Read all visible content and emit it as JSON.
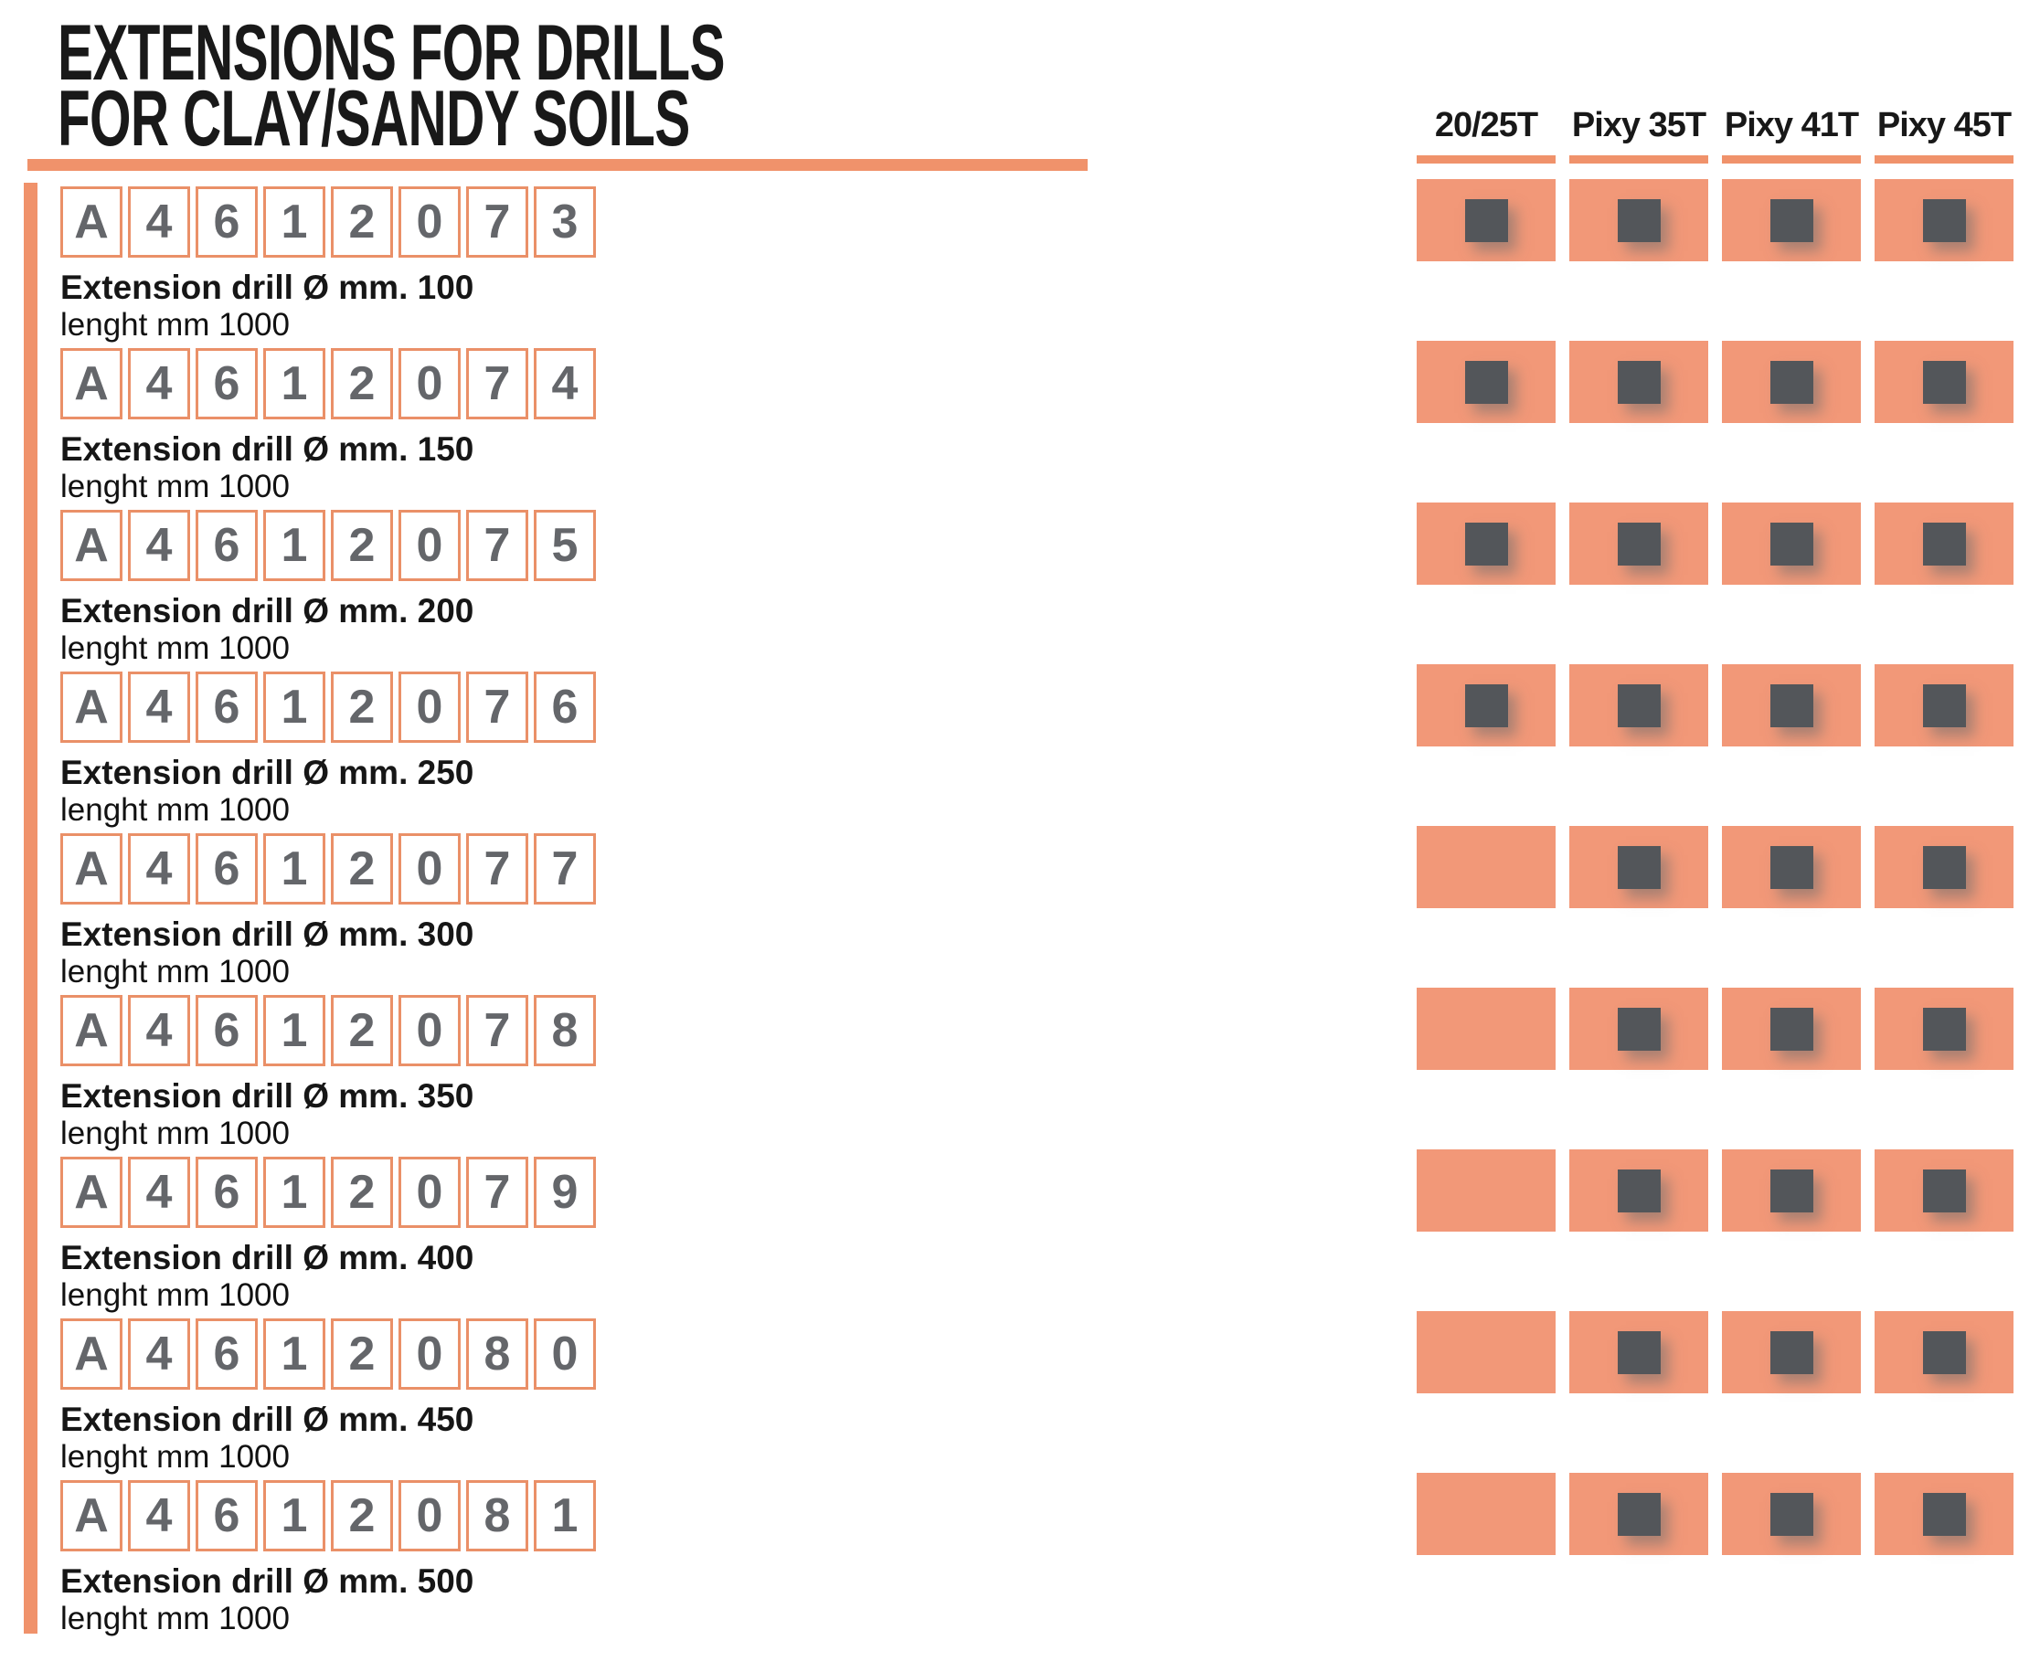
{
  "page": {
    "title_line1": "EXTENSIONS FOR DRILLS",
    "title_line2": "FOR CLAY/SANDY SOILS"
  },
  "columns": [
    {
      "label": "20/25T"
    },
    {
      "label": "Pixy 35T"
    },
    {
      "label": "Pixy 41T"
    },
    {
      "label": "Pixy 45T"
    }
  ],
  "rows": [
    {
      "code": [
        "A",
        "4",
        "6",
        "1",
        "2",
        "0",
        "7",
        "3"
      ],
      "description": "Extension drill Ø mm. 100",
      "length_note": "lenght mm 1000",
      "compatibility": [
        true,
        true,
        true,
        true
      ]
    },
    {
      "code": [
        "A",
        "4",
        "6",
        "1",
        "2",
        "0",
        "7",
        "4"
      ],
      "description": "Extension drill Ø mm. 150",
      "length_note": "lenght mm 1000",
      "compatibility": [
        true,
        true,
        true,
        true
      ]
    },
    {
      "code": [
        "A",
        "4",
        "6",
        "1",
        "2",
        "0",
        "7",
        "5"
      ],
      "description": "Extension drill Ø mm. 200",
      "length_note": "lenght mm 1000",
      "compatibility": [
        true,
        true,
        true,
        true
      ]
    },
    {
      "code": [
        "A",
        "4",
        "6",
        "1",
        "2",
        "0",
        "7",
        "6"
      ],
      "description": "Extension drill Ø mm. 250",
      "length_note": "lenght mm 1000",
      "compatibility": [
        true,
        true,
        true,
        true
      ]
    },
    {
      "code": [
        "A",
        "4",
        "6",
        "1",
        "2",
        "0",
        "7",
        "7"
      ],
      "description": "Extension drill Ø mm. 300",
      "length_note": "lenght mm 1000",
      "compatibility": [
        false,
        true,
        true,
        true
      ]
    },
    {
      "code": [
        "A",
        "4",
        "6",
        "1",
        "2",
        "0",
        "7",
        "8"
      ],
      "description": "Extension drill Ø mm. 350",
      "length_note": "lenght mm 1000",
      "compatibility": [
        false,
        true,
        true,
        true
      ]
    },
    {
      "code": [
        "A",
        "4",
        "6",
        "1",
        "2",
        "0",
        "7",
        "9"
      ],
      "description": "Extension drill Ø mm. 400",
      "length_note": "lenght mm 1000",
      "compatibility": [
        false,
        true,
        true,
        true
      ]
    },
    {
      "code": [
        "A",
        "4",
        "6",
        "1",
        "2",
        "0",
        "8",
        "0"
      ],
      "description": "Extension drill Ø mm. 450",
      "length_note": "lenght mm 1000",
      "compatibility": [
        false,
        true,
        true,
        true
      ]
    },
    {
      "code": [
        "A",
        "4",
        "6",
        "1",
        "2",
        "0",
        "8",
        "1"
      ],
      "description": "Extension drill Ø mm. 500",
      "length_note": "lenght mm 1000",
      "compatibility": [
        false,
        true,
        true,
        true
      ]
    }
  ],
  "colors": {
    "accent": "#F0926B",
    "code_box_border": "#EA9068",
    "cell_fill": "#F29878",
    "compat_mark": "#53565A",
    "code_text": "#64666A",
    "text": "#161616"
  }
}
